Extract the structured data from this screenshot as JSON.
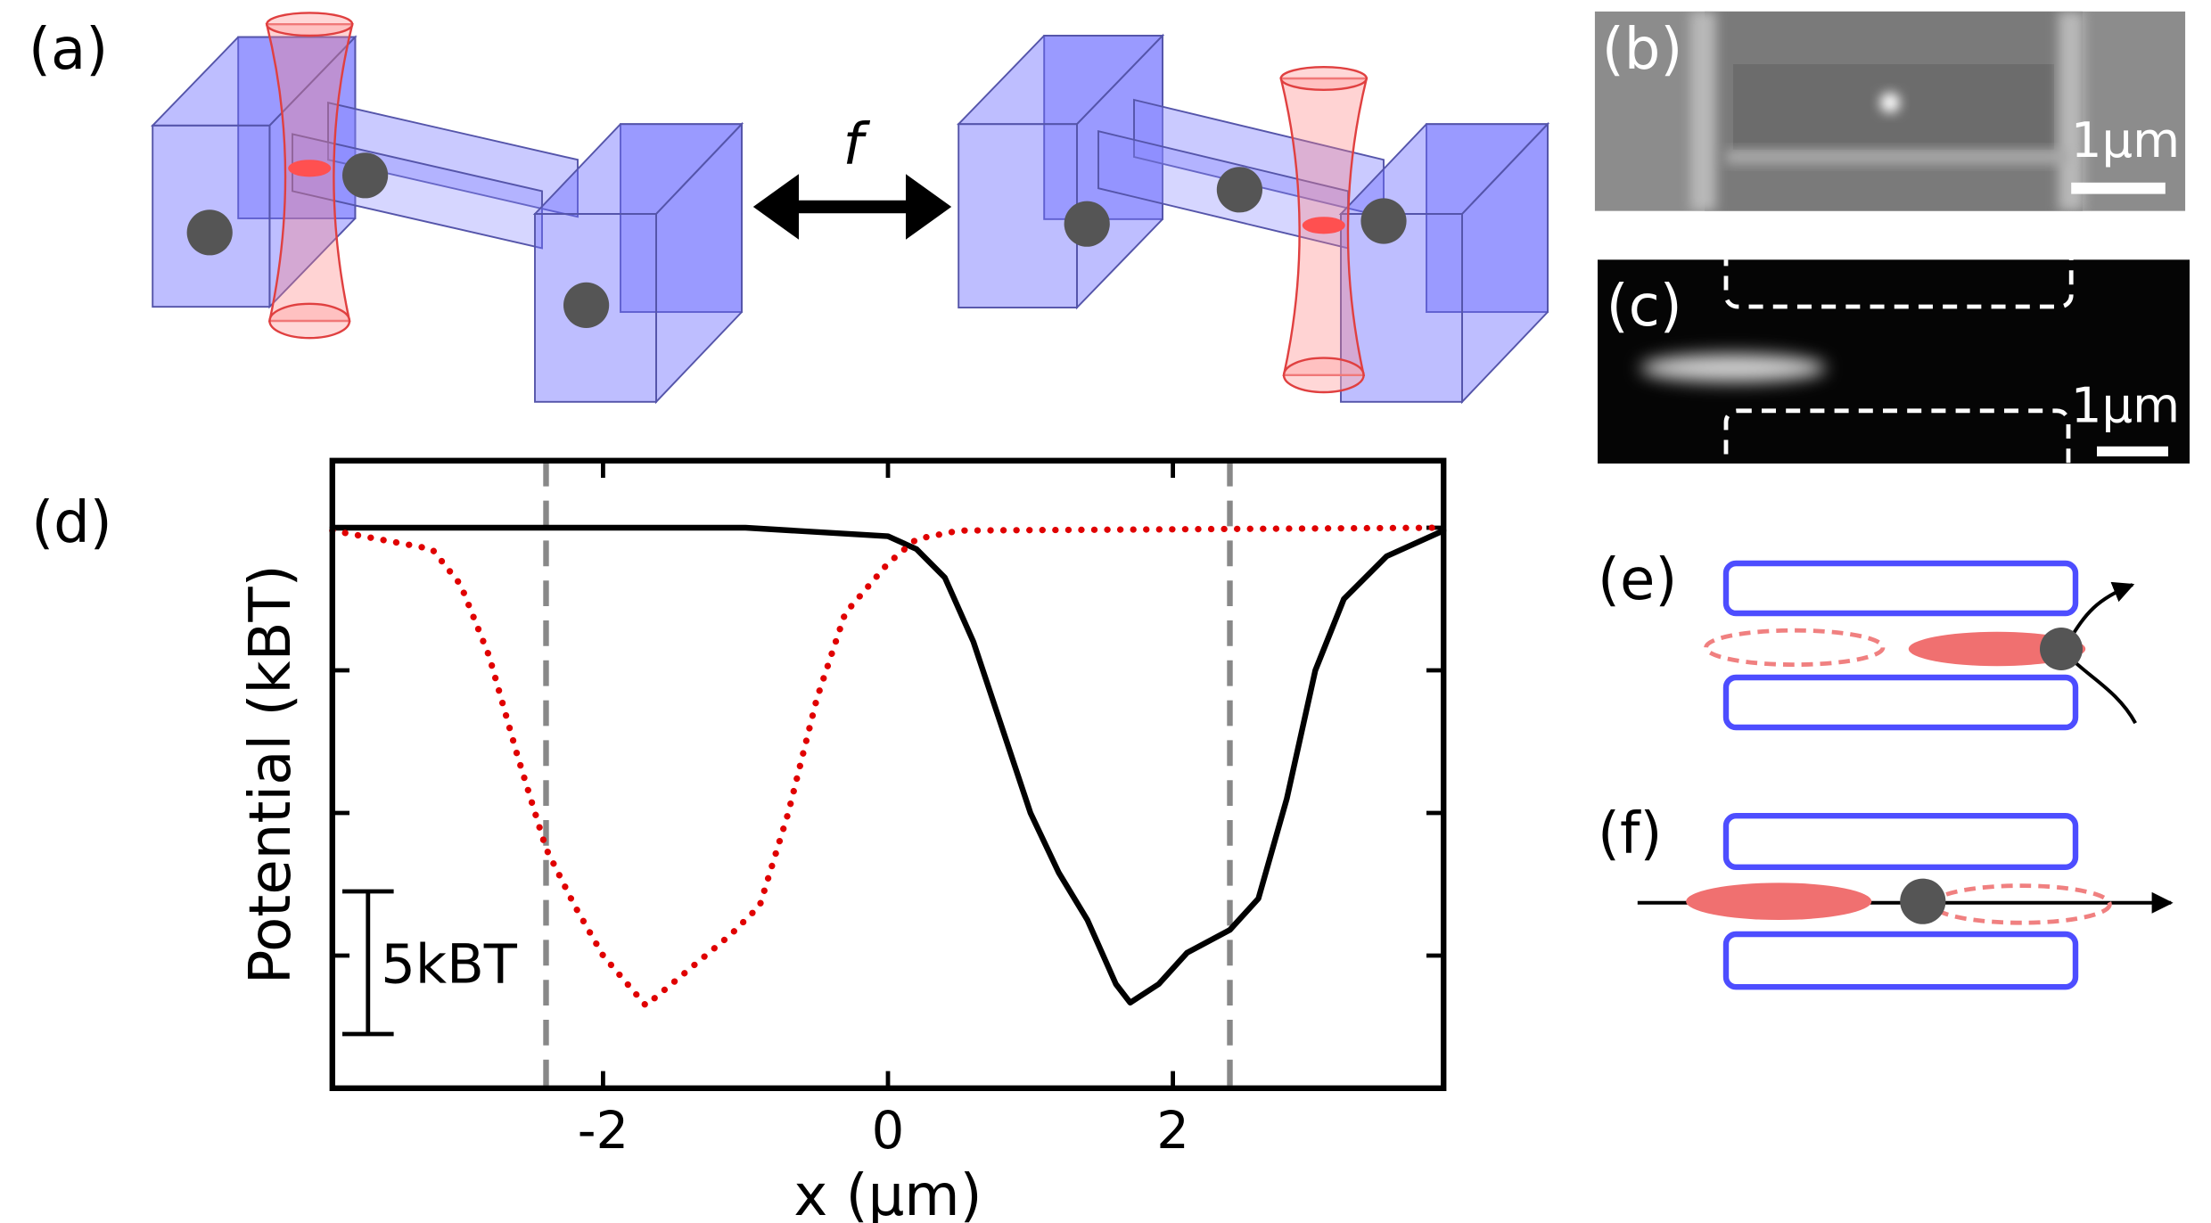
{
  "panel_a": {
    "label": "(a)",
    "arrow_label": "f"
  },
  "panel_b": {
    "label": "(b)",
    "scale_label": "1μm"
  },
  "panel_c": {
    "label": "(c)",
    "scale_label": "1μm"
  },
  "panel_e": {
    "label": "(e)"
  },
  "panel_f": {
    "label": "(f)"
  },
  "chart_data": {
    "type": "line",
    "panel_label": "(d)",
    "x_label": "x (μm)",
    "y_label": "Potential (kBT)",
    "xlim": [
      -3.9,
      3.9
    ],
    "xticks": [
      -2,
      0,
      2
    ],
    "ylim": [
      -19.65,
      2.35
    ],
    "yticks": [
      0,
      -5,
      -10,
      -15
    ],
    "vlines": [
      -2.4,
      2.4
    ],
    "scale_bar": {
      "value": 5,
      "label": "5kBT"
    },
    "series": [
      {
        "color": "#000000",
        "style": "solid",
        "x": [
          -3.9,
          -3,
          -1,
          0,
          0.2,
          0.4,
          0.6,
          0.8,
          1.0,
          1.2,
          1.4,
          1.6,
          1.7,
          1.9,
          2.1,
          2.4,
          2.6,
          2.8,
          3.0,
          3.2,
          3.5,
          3.9
        ],
        "values": [
          0,
          0,
          0,
          -0.3,
          -0.75,
          -1.75,
          -4,
          -7,
          -10,
          -12.1,
          -13.75,
          -16,
          -16.65,
          -16,
          -14.9,
          -14.1,
          -13,
          -9.5,
          -5,
          -2.5,
          -1,
          -0.1
        ]
      },
      {
        "color": "#e00000",
        "style": "dotted",
        "x": [
          -3.9,
          -3.2,
          -3.0,
          -2.8,
          -2.6,
          -2.4,
          -2.2,
          -2.0,
          -1.7,
          -1.4,
          -1.1,
          -0.9,
          -0.7,
          -0.5,
          -0.3,
          0,
          0.2,
          0.5,
          3.9
        ],
        "values": [
          -0.1,
          -0.75,
          -2,
          -4.5,
          -8,
          -11.25,
          -13.25,
          -15,
          -16.75,
          -15.5,
          -14.25,
          -13.25,
          -10,
          -6,
          -3,
          -1.25,
          -0.4,
          -0.1,
          0
        ]
      }
    ]
  }
}
